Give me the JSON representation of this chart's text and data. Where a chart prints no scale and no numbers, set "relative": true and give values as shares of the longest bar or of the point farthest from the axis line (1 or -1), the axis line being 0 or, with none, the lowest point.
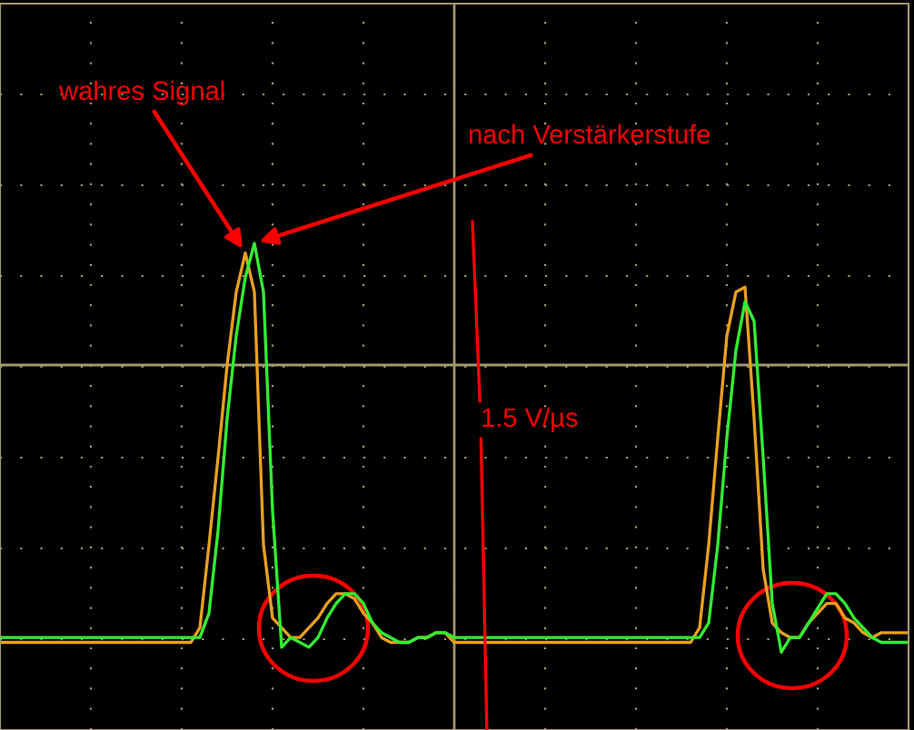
{
  "chart_data": {
    "type": "line",
    "relative": true,
    "grid": true,
    "categories": [
      null,
      null,
      null,
      null,
      null,
      null,
      null,
      null,
      null,
      null,
      null,
      null,
      null,
      null,
      null,
      null,
      null,
      null,
      null,
      null,
      null,
      null,
      null,
      null,
      null,
      null,
      null,
      null,
      null,
      null,
      null,
      null,
      null,
      null,
      null,
      null,
      null,
      null,
      null,
      null,
      null,
      null,
      null,
      null,
      null,
      null,
      null,
      null,
      null,
      null,
      null,
      null,
      null,
      null,
      null,
      null,
      null,
      null,
      null,
      null,
      null,
      null,
      null,
      null,
      null,
      null,
      null,
      null,
      null,
      null,
      null,
      null,
      null,
      null,
      null,
      null,
      null,
      null,
      null,
      null,
      null,
      null,
      null,
      null,
      null,
      null,
      null,
      null,
      null,
      null,
      null,
      null,
      null,
      null,
      null,
      null,
      null,
      null,
      null,
      null,
      null
    ],
    "series": [
      {
        "color": "#e8a020",
        "values": [
          0.18,
          0.18,
          0.18,
          0.18,
          0.18,
          0.18,
          0.18,
          0.18,
          0.18,
          0.18,
          0.18,
          0.18,
          0.18,
          0.18,
          0.18,
          0.18,
          0.18,
          0.18,
          0.18,
          0.18,
          0.18,
          0.18,
          0.21,
          0.38,
          0.56,
          0.75,
          0.9,
          0.98,
          0.9,
          0.38,
          0.23,
          0.21,
          0.19,
          0.19,
          0.21,
          0.23,
          0.26,
          0.28,
          0.28,
          0.27,
          0.24,
          0.22,
          0.19,
          0.18,
          0.18,
          0.18,
          0.19,
          0.19,
          0.2,
          0.2,
          0.18,
          0.18,
          0.18,
          0.18,
          0.18,
          0.18,
          0.18,
          0.18,
          0.18,
          0.18,
          0.18,
          0.18,
          0.18,
          0.18,
          0.18,
          0.18,
          0.18,
          0.18,
          0.18,
          0.18,
          0.18,
          0.18,
          0.18,
          0.18,
          0.18,
          0.18,
          0.18,
          0.21,
          0.38,
          0.6,
          0.81,
          0.9,
          0.91,
          0.64,
          0.33,
          0.22,
          0.2,
          0.19,
          0.19,
          0.22,
          0.24,
          0.26,
          0.26,
          0.23,
          0.22,
          0.2,
          0.19,
          0.2,
          0.2,
          0.2,
          0.2
        ]
      },
      {
        "color": "#33ee33",
        "values": [
          0.19,
          0.19,
          0.19,
          0.19,
          0.19,
          0.19,
          0.19,
          0.19,
          0.19,
          0.19,
          0.19,
          0.19,
          0.19,
          0.19,
          0.19,
          0.19,
          0.19,
          0.19,
          0.19,
          0.19,
          0.19,
          0.19,
          0.19,
          0.24,
          0.41,
          0.64,
          0.81,
          0.93,
          1,
          0.9,
          0.45,
          0.17,
          0.19,
          0.18,
          0.17,
          0.19,
          0.23,
          0.26,
          0.28,
          0.28,
          0.26,
          0.22,
          0.2,
          0.19,
          0.18,
          0.18,
          0.19,
          0.19,
          0.2,
          0.2,
          0.19,
          0.19,
          0.19,
          0.19,
          0.19,
          0.19,
          0.19,
          0.19,
          0.19,
          0.19,
          0.19,
          0.19,
          0.19,
          0.19,
          0.19,
          0.19,
          0.19,
          0.19,
          0.19,
          0.19,
          0.19,
          0.19,
          0.19,
          0.19,
          0.19,
          0.19,
          0.19,
          0.19,
          0.22,
          0.38,
          0.6,
          0.78,
          0.88,
          0.84,
          0.56,
          0.26,
          0.16,
          0.19,
          0.19,
          0.22,
          0.25,
          0.28,
          0.28,
          0.26,
          0.23,
          0.21,
          0.19,
          0.18,
          0.18,
          0.18,
          0.18
        ]
      }
    ],
    "ref_lines": [
      {
        "axis": "y",
        "value": 0.75,
        "color": "#a09870"
      }
    ],
    "annotations": [
      "wahres Signal",
      "nach Verstärkerstufe",
      "1.5 V/µs"
    ]
  }
}
